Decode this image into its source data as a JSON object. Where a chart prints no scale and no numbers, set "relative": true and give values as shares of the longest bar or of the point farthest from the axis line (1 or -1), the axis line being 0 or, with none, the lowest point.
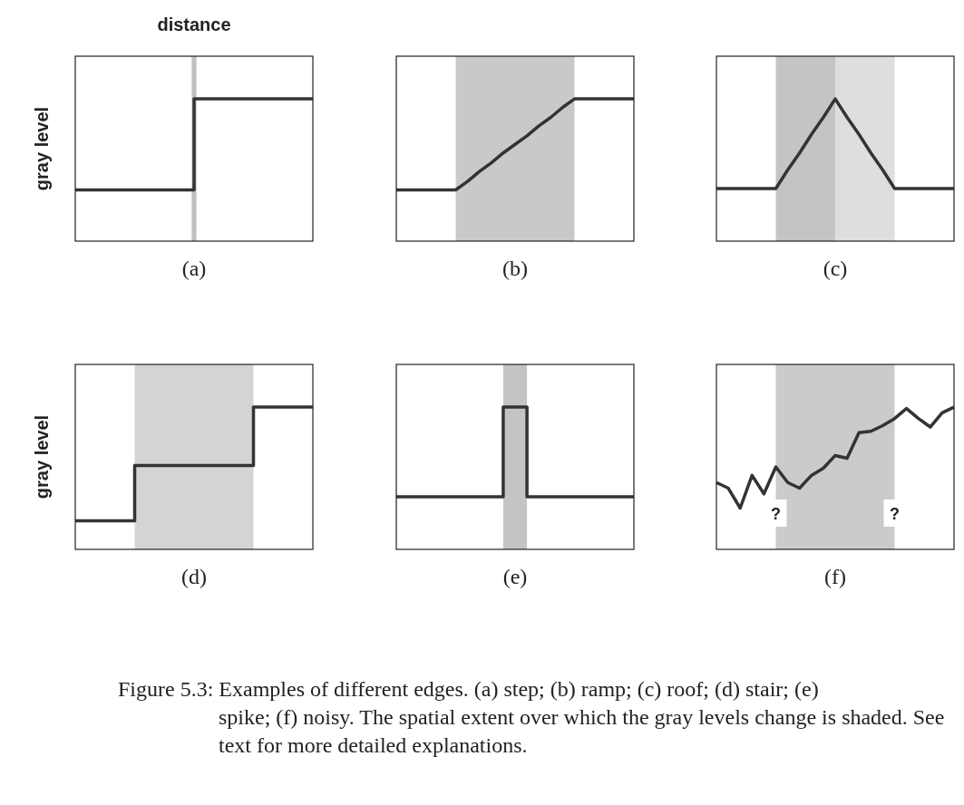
{
  "chart_data": [
    {
      "type": "step",
      "title": "(a)",
      "xlabel": "distance",
      "ylabel": "gray level",
      "relative": true,
      "categories": [
        null,
        null,
        null,
        null,
        null,
        null,
        null,
        null,
        null,
        null,
        null
      ],
      "series": [
        {
          "color": "#333333",
          "values": [
            0.36,
            0.36,
            0.36,
            0.36,
            0.36,
            1,
            1,
            1,
            1,
            1,
            1
          ]
        }
      ]
    },
    {
      "type": "line",
      "title": "(b)",
      "relative": true,
      "categories": [
        null,
        null,
        null,
        null,
        null,
        null,
        null,
        null,
        null,
        null,
        null,
        null,
        null,
        null,
        null,
        null,
        null,
        null,
        null,
        null,
        null
      ],
      "series": [
        {
          "color": "#333333",
          "values": [
            0.36,
            0.36,
            0.36,
            0.36,
            0.36,
            0.36,
            0.42,
            0.49,
            0.55,
            0.62,
            0.68,
            0.74,
            0.81,
            0.87,
            0.94,
            1,
            1,
            1,
            1,
            1,
            1
          ]
        }
      ]
    },
    {
      "type": "line",
      "title": "(c)",
      "relative": true,
      "categories": [
        null,
        null,
        null,
        null,
        null,
        null,
        null,
        null,
        null,
        null,
        null,
        null,
        null,
        null,
        null,
        null,
        null,
        null,
        null,
        null,
        null
      ],
      "series": [
        {
          "color": "#333333",
          "values": [
            0.37,
            0.37,
            0.37,
            0.37,
            0.37,
            0.37,
            0.5,
            0.62,
            0.75,
            0.87,
            1,
            0.87,
            0.75,
            0.62,
            0.5,
            0.37,
            0.37,
            0.37,
            0.37,
            0.37,
            0.37
          ]
        }
      ]
    },
    {
      "type": "step",
      "title": "(d)",
      "ylabel": "gray level",
      "relative": true,
      "categories": [
        null,
        null,
        null,
        null,
        null,
        null,
        null,
        null,
        null,
        null,
        null,
        null,
        null,
        null,
        null,
        null,
        null,
        null,
        null,
        null,
        null
      ],
      "series": [
        {
          "color": "#333333",
          "values": [
            0.2,
            0.2,
            0.2,
            0.2,
            0.2,
            0.59,
            0.59,
            0.59,
            0.59,
            0.59,
            0.59,
            0.59,
            0.59,
            0.59,
            0.59,
            1,
            1,
            1,
            1,
            1,
            1
          ]
        }
      ]
    },
    {
      "type": "step",
      "title": "(e)",
      "relative": true,
      "categories": [
        null,
        null,
        null,
        null,
        null,
        null,
        null,
        null,
        null,
        null,
        null,
        null,
        null,
        null,
        null,
        null,
        null,
        null,
        null,
        null,
        null
      ],
      "series": [
        {
          "color": "#333333",
          "values": [
            0.37,
            0.37,
            0.37,
            0.37,
            0.37,
            0.37,
            0.37,
            0.37,
            0.37,
            1,
            1,
            0.37,
            0.37,
            0.37,
            0.37,
            0.37,
            0.37,
            0.37,
            0.37,
            0.37,
            0.37
          ]
        }
      ]
    },
    {
      "type": "line",
      "title": "(f)",
      "relative": true,
      "categories": [
        null,
        null,
        null,
        null,
        null,
        null,
        null,
        null,
        null,
        null,
        null,
        null,
        null,
        null,
        null,
        null,
        null,
        null,
        null,
        null,
        null
      ],
      "series": [
        {
          "color": "#333333",
          "values": [
            0.47,
            0.43,
            0.29,
            0.52,
            0.39,
            0.58,
            0.47,
            0.43,
            0.52,
            0.57,
            0.66,
            0.64,
            0.82,
            0.83,
            0.87,
            0.92,
            0.99,
            0.92,
            0.86,
            0.96,
            1
          ]
        }
      ],
      "annotations": [
        "?",
        "?",
        "Figure 5.3: Examples of different edges. (a) step; (b) ramp; (c) roof; (d) stair; (e) spike; (f) noisy. The spatial extent over which the gray levels change is shaded. See text for more detailed explanations."
      ]
    }
  ]
}
